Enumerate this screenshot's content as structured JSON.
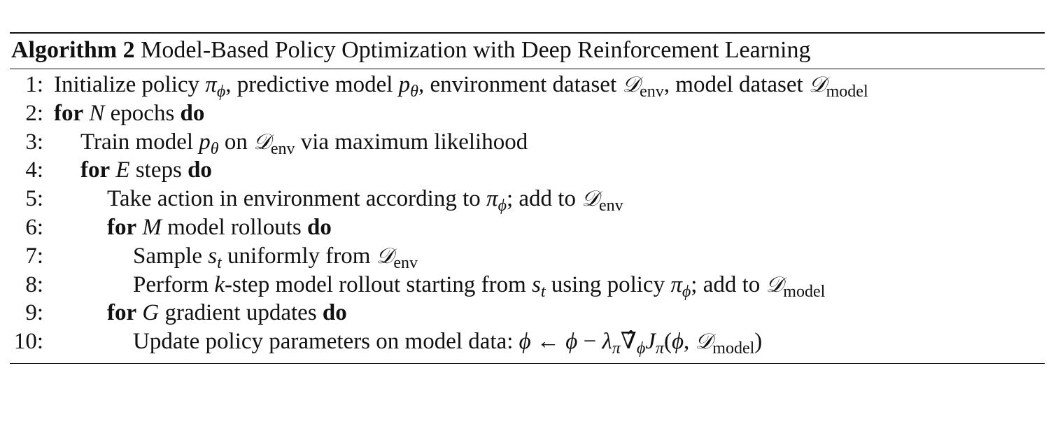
{
  "algorithm": {
    "label": "Algorithm 2",
    "title": "Model-Based Policy Optimization with Deep Reinforcement Learning"
  },
  "lines": [
    {
      "num": "1:",
      "text": "Initialize policy πϕ, predictive model pθ, environment dataset 𝒟env, model dataset 𝒟model"
    },
    {
      "num": "2:",
      "text": "for N epochs do"
    },
    {
      "num": "3:",
      "text": "Train model pθ on 𝒟env via maximum likelihood"
    },
    {
      "num": "4:",
      "text": "for E steps do"
    },
    {
      "num": "5:",
      "text": "Take action in environment according to πϕ; add to 𝒟env"
    },
    {
      "num": "6:",
      "text": "for M model rollouts do"
    },
    {
      "num": "7:",
      "text": "Sample st uniformly from 𝒟env"
    },
    {
      "num": "8:",
      "text": "Perform k-step model rollout starting from st using policy πϕ; add to 𝒟model"
    },
    {
      "num": "9:",
      "text": "for G gradient updates do"
    },
    {
      "num": "10:",
      "text": "Update policy parameters on model data: ϕ ← ϕ − λπ ∇̂ϕ Jπ(ϕ, 𝒟model)"
    }
  ],
  "tokens": {
    "kw_for": "for",
    "kw_do": "do",
    "pi": "π",
    "phi": "ϕ",
    "p": "p",
    "theta": "θ",
    "D": "𝒟",
    "env": "env",
    "model": "model",
    "N": "N",
    "E": "E",
    "M": "M",
    "G": "G",
    "s": "s",
    "t": "t",
    "k": "k",
    "lambda": "λ",
    "nabla_hat": "∇̂",
    "J": "J",
    "arrow": "←",
    "minus": "−",
    "lparen": "(",
    "rparen": ")",
    "comma_sep": ", ",
    "l1_a": "Initialize policy ",
    "l1_b": ", predictive model ",
    "l1_c": ", environment dataset ",
    "l1_d": ", model dataset ",
    "l2_a": " epochs ",
    "l3_a": "Train model ",
    "l3_b": " on ",
    "l3_c": " via maximum likelihood",
    "l4_a": " steps ",
    "l5_a": "Take action in environment according to ",
    "l5_b": "; add to ",
    "l6_a": " model rollouts ",
    "l7_a": "Sample ",
    "l7_b": " uniformly from ",
    "l8_a": "Perform ",
    "l8_b": "-step model rollout starting from ",
    "l8_c": " using policy ",
    "l8_d": "; add to ",
    "l9_a": " gradient updates ",
    "l10_a": "Update policy parameters on model data: "
  }
}
